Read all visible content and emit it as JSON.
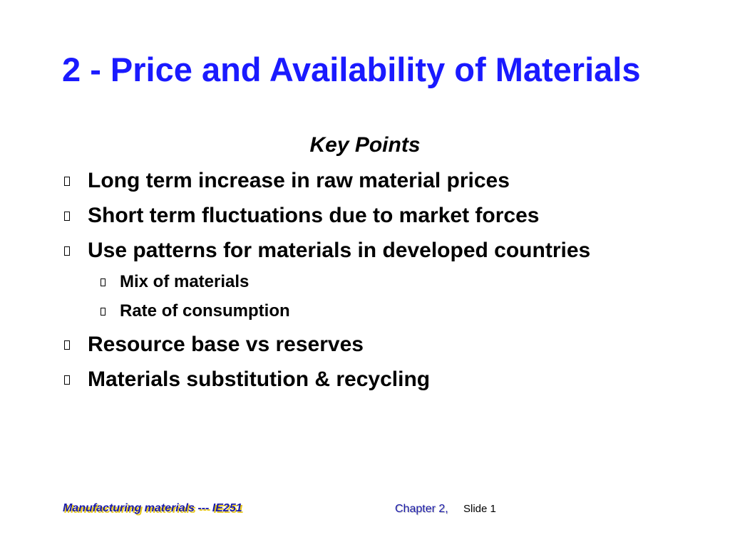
{
  "slide": {
    "title": "2 - Price and Availability of Materials",
    "subtitle": "Key Points",
    "bullets": [
      "Long term increase in raw material prices",
      "Short term fluctuations due to market forces",
      "Use patterns for materials in developed countries",
      "Resource base vs reserves",
      "Materials substitution & recycling"
    ],
    "sub_bullets": [
      "Mix of materials",
      "Rate of consumption"
    ],
    "bullet_icon": "square-bullet-icon"
  },
  "footer": {
    "course": "Manufacturing materials  --- IE251",
    "chapter": "Chapter 2,",
    "slide_label": "Slide 1"
  },
  "colors": {
    "title": "#1a1aff",
    "footer_text": "#1a1aaa",
    "footer_shadow": "#e6c619"
  }
}
